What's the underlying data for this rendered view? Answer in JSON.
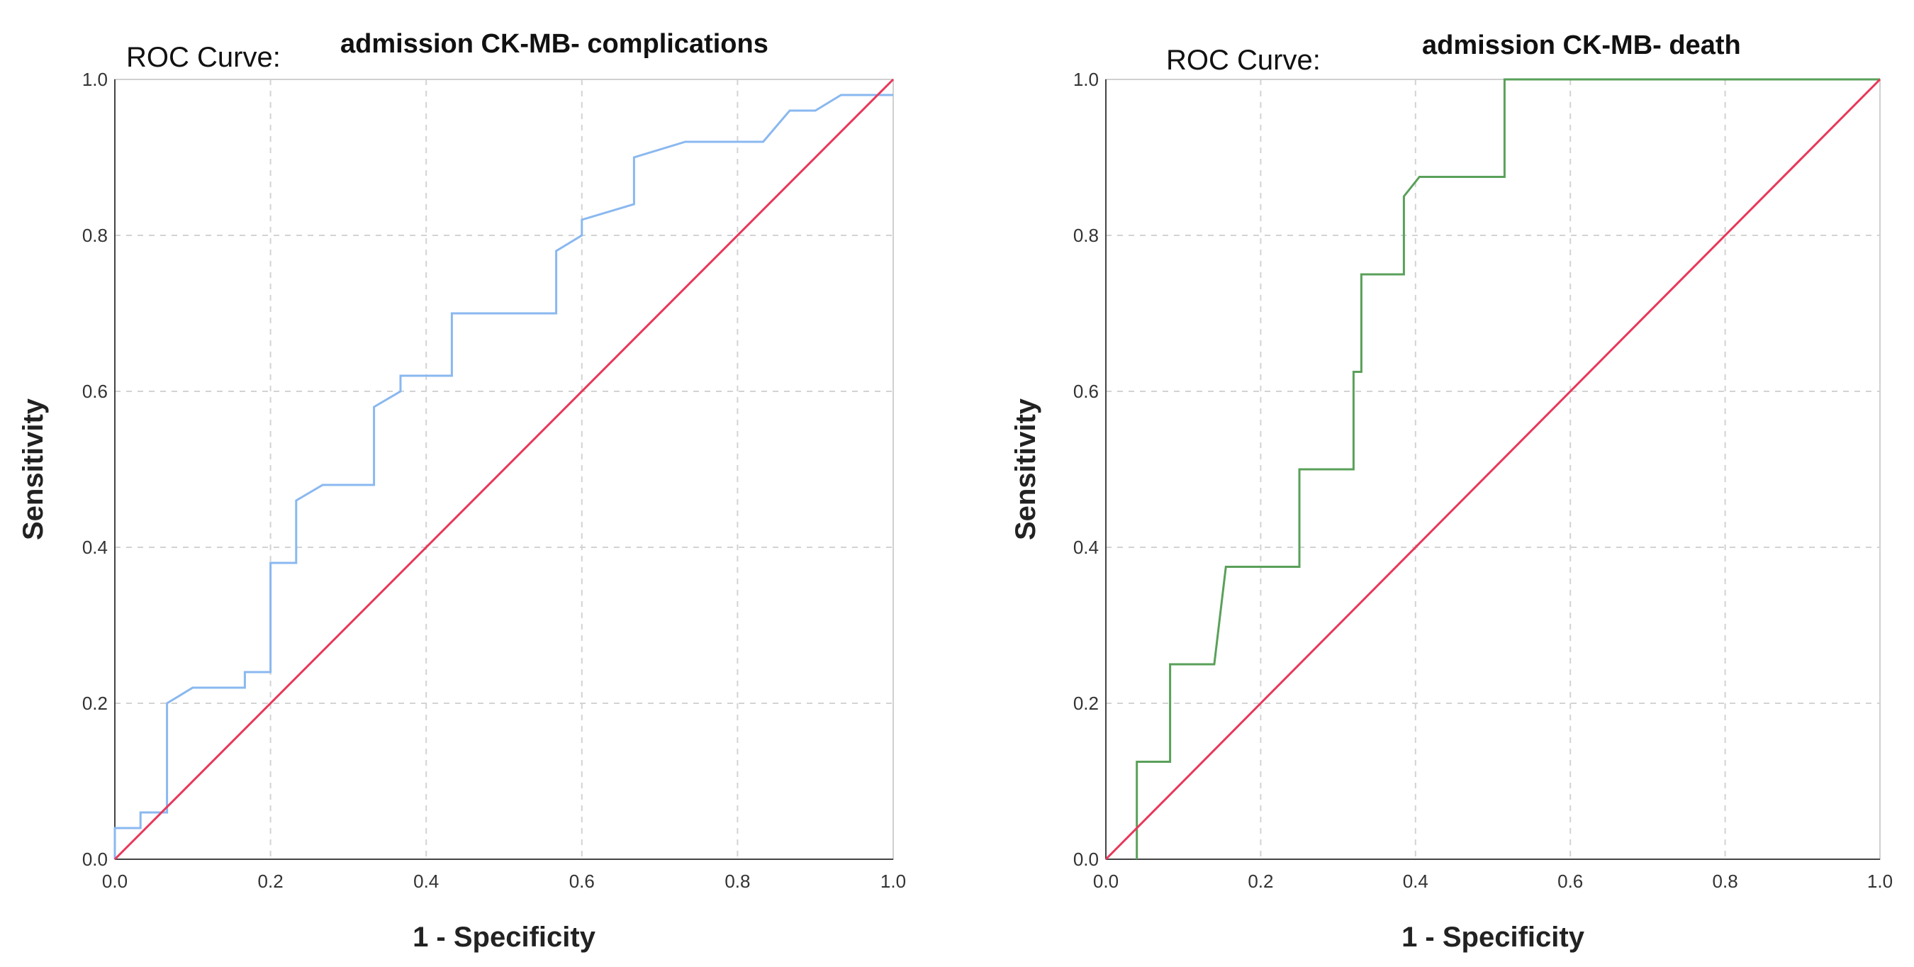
{
  "chart_data": [
    {
      "type": "line",
      "heading": "ROC Curve:",
      "title": "admission CK-MB- complications",
      "xlabel": "1 - Specificity",
      "ylabel": "Sensitivity",
      "xlim": [
        0,
        1
      ],
      "ylim": [
        0,
        1
      ],
      "ticks": [
        "0.0",
        "0.2",
        "0.4",
        "0.6",
        "0.8",
        "1.0"
      ],
      "grid": true,
      "colors": {
        "curve": "#8ab8f0",
        "reference": "#e8375a"
      },
      "series": [
        {
          "name": "admission CK-MB",
          "x": [
            0,
            0,
            0.033,
            0.033,
            0.067,
            0.067,
            0.1,
            0.167,
            0.167,
            0.2,
            0.2,
            0.233,
            0.233,
            0.267,
            0.333,
            0.333,
            0.367,
            0.367,
            0.433,
            0.433,
            0.567,
            0.567,
            0.6,
            0.6,
            0.667,
            0.667,
            0.733,
            0.833,
            0.867,
            0.9,
            0.933,
            1.0
          ],
          "y": [
            0,
            0.04,
            0.04,
            0.06,
            0.06,
            0.2,
            0.22,
            0.22,
            0.24,
            0.24,
            0.38,
            0.38,
            0.46,
            0.48,
            0.48,
            0.58,
            0.6,
            0.62,
            0.62,
            0.7,
            0.7,
            0.78,
            0.8,
            0.82,
            0.84,
            0.9,
            0.92,
            0.92,
            0.96,
            0.96,
            0.98,
            0.98
          ]
        },
        {
          "name": "Reference Line",
          "x": [
            0,
            1
          ],
          "y": [
            0,
            1
          ]
        }
      ]
    },
    {
      "type": "line",
      "heading": "ROC Curve:",
      "title": "admission CK-MB- death",
      "xlabel": "1 - Specificity",
      "ylabel": "Sensitivity",
      "xlim": [
        0,
        1
      ],
      "ylim": [
        0,
        1
      ],
      "ticks": [
        "0.0",
        "0.2",
        "0.4",
        "0.6",
        "0.8",
        "1.0"
      ],
      "grid": true,
      "colors": {
        "curve": "#5aa05a",
        "reference": "#e8375a"
      },
      "series": [
        {
          "name": "admission CK-MB",
          "x": [
            0.04,
            0.04,
            0.083,
            0.083,
            0.14,
            0.155,
            0.25,
            0.25,
            0.32,
            0.32,
            0.33,
            0.33,
            0.385,
            0.385,
            0.405,
            0.515,
            0.515,
            1.0
          ],
          "y": [
            0,
            0.125,
            0.125,
            0.25,
            0.25,
            0.375,
            0.375,
            0.5,
            0.5,
            0.625,
            0.625,
            0.75,
            0.75,
            0.85,
            0.875,
            0.875,
            1.0,
            1.0
          ]
        },
        {
          "name": "Reference Line",
          "x": [
            0,
            1
          ],
          "y": [
            0,
            1
          ]
        }
      ]
    }
  ]
}
